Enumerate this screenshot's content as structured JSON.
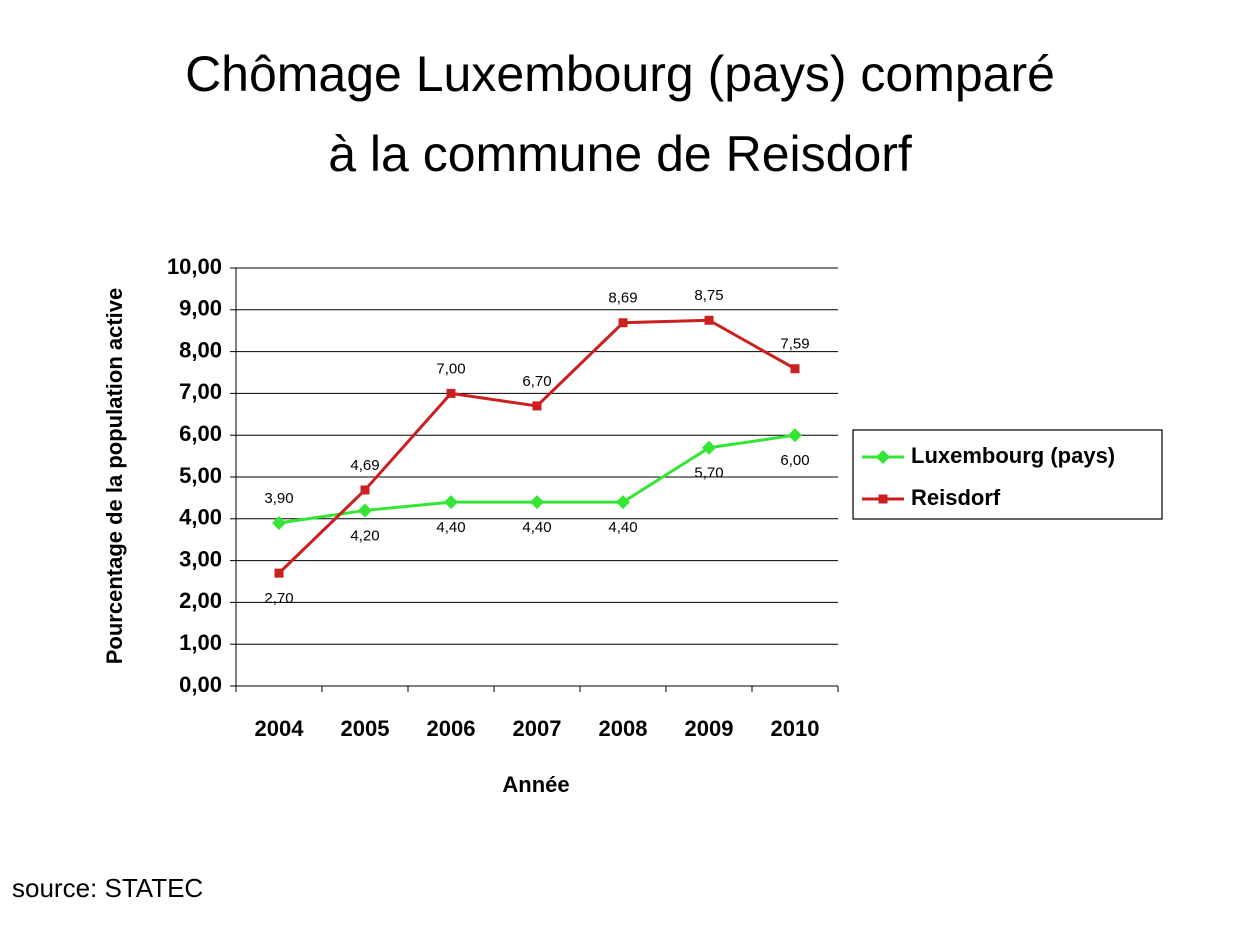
{
  "chart_data": {
    "type": "line",
    "title": [
      "Chômage Luxembourg (pays) comparé",
      "à la commune de Reisdorf"
    ],
    "x_label": "Année",
    "y_label": "Pourcentage de la population active",
    "source": "source: STATEC",
    "categories": [
      "2004",
      "2005",
      "2006",
      "2007",
      "2008",
      "2009",
      "2010"
    ],
    "series": [
      {
        "name": "Luxembourg (pays)",
        "color": "#33e633",
        "marker": "diamond",
        "values": [
          3.9,
          4.2,
          4.4,
          4.4,
          4.4,
          5.7,
          6.0
        ],
        "value_labels": [
          "3,90",
          "4,20",
          "4,40",
          "4,40",
          "4,40",
          "5,70",
          "6,00"
        ]
      },
      {
        "name": "Reisdorf",
        "color": "#cc1f1f",
        "marker": "square",
        "values": [
          2.7,
          4.69,
          7.0,
          6.7,
          8.69,
          8.75,
          7.59
        ],
        "value_labels": [
          "2,70",
          "4,69",
          "7,00",
          "6,70",
          "8,69",
          "8,75",
          "7,59"
        ]
      }
    ],
    "ylim": [
      0,
      10
    ],
    "yticks": [
      {
        "value": 0,
        "label": "0,00"
      },
      {
        "value": 1,
        "label": "1,00"
      },
      {
        "value": 2,
        "label": "2,00"
      },
      {
        "value": 3,
        "label": "3,00"
      },
      {
        "value": 4,
        "label": "4,00"
      },
      {
        "value": 5,
        "label": "5,00"
      },
      {
        "value": 6,
        "label": "6,00"
      },
      {
        "value": 7,
        "label": "7,00"
      },
      {
        "value": 8,
        "label": "8,00"
      },
      {
        "value": 9,
        "label": "9,00"
      },
      {
        "value": 10,
        "label": "10,00"
      }
    ],
    "grid": true,
    "legend": "right"
  }
}
